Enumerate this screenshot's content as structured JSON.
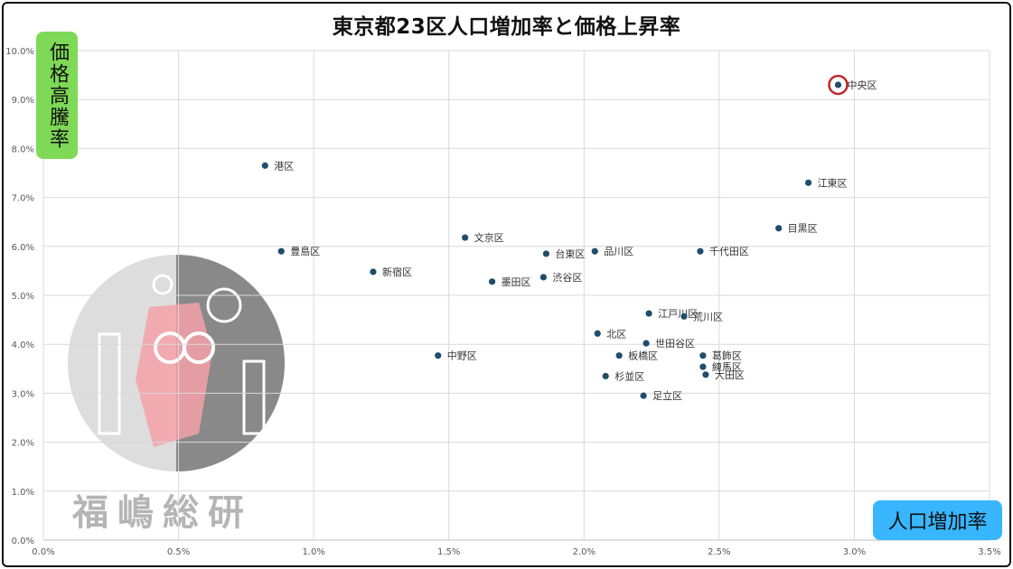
{
  "chart_data": {
    "type": "scatter",
    "title": "東京都23区人口増加率と価格上昇率",
    "xlabel": "人口増加率",
    "ylabel": "価格高騰率",
    "xlim": [
      0,
      3.5
    ],
    "ylim": [
      0,
      10
    ],
    "xticks": [
      "0.0%",
      "0.5%",
      "1.0%",
      "1.5%",
      "2.0%",
      "2.5%",
      "3.0%",
      "3.5%"
    ],
    "yticks": [
      "0.0%",
      "1.0%",
      "2.0%",
      "3.0%",
      "4.0%",
      "5.0%",
      "6.0%",
      "7.0%",
      "8.0%",
      "9.0%",
      "10.0%"
    ],
    "grid": true,
    "point_color": "#1f4e6b",
    "highlight_color": "#c0282d",
    "highlight": "中央区",
    "points": [
      {
        "label": "中央区",
        "x": 2.94,
        "y": 9.3
      },
      {
        "label": "港区",
        "x": 0.82,
        "y": 7.65
      },
      {
        "label": "江東区",
        "x": 2.83,
        "y": 7.3
      },
      {
        "label": "目黒区",
        "x": 2.72,
        "y": 6.37
      },
      {
        "label": "文京区",
        "x": 1.56,
        "y": 6.18
      },
      {
        "label": "豊島区",
        "x": 0.88,
        "y": 5.9
      },
      {
        "label": "台東区",
        "x": 1.86,
        "y": 5.85
      },
      {
        "label": "品川区",
        "x": 2.04,
        "y": 5.9
      },
      {
        "label": "千代田区",
        "x": 2.43,
        "y": 5.9
      },
      {
        "label": "新宿区",
        "x": 1.22,
        "y": 5.48
      },
      {
        "label": "墨田区",
        "x": 1.66,
        "y": 5.28
      },
      {
        "label": "渋谷区",
        "x": 1.85,
        "y": 5.37
      },
      {
        "label": "江戸川区",
        "x": 2.24,
        "y": 4.63
      },
      {
        "label": "荒川区",
        "x": 2.37,
        "y": 4.57
      },
      {
        "label": "北区",
        "x": 2.05,
        "y": 4.22
      },
      {
        "label": "世田谷区",
        "x": 2.23,
        "y": 4.02
      },
      {
        "label": "中野区",
        "x": 1.46,
        "y": 3.77
      },
      {
        "label": "板橋区",
        "x": 2.13,
        "y": 3.77
      },
      {
        "label": "葛飾区",
        "x": 2.44,
        "y": 3.77
      },
      {
        "label": "練馬区",
        "x": 2.44,
        "y": 3.54
      },
      {
        "label": "大田区",
        "x": 2.45,
        "y": 3.38
      },
      {
        "label": "杉並区",
        "x": 2.08,
        "y": 3.35
      },
      {
        "label": "足立区",
        "x": 2.22,
        "y": 2.95
      }
    ]
  },
  "watermark": {
    "text": "福嶋総研",
    "icon": "gear-person-building-logo"
  }
}
